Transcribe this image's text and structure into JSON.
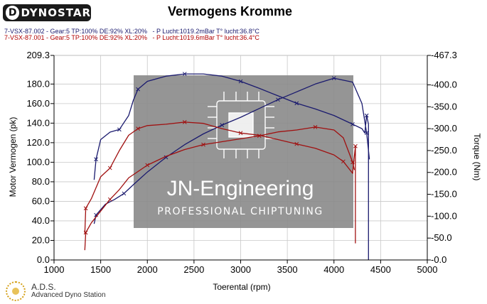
{
  "brand": {
    "logo_text": "DYNOSTAR",
    "logo_letter": "D"
  },
  "chart_title": "Vermogens Kromme",
  "runs": [
    {
      "label": "7-VSX-87.002 - Gear:5 TP:100% DE:92% XL:20%   - P Lucht:1019.2mBar T° lucht:36.8°C",
      "color": "#1a1a6e"
    },
    {
      "label": "7-VSX-87.001 - Gear:5 TP:100% DE:92% XL:20%   - P Lucht:1019.6mBar T° lucht:36.4°C",
      "color": "#b00000"
    }
  ],
  "footer": {
    "short": "A.D.S.",
    "long": "Advanced Dyno Station"
  },
  "watermark": {
    "title": "JN-Engineering",
    "subtitle": "PROFESSIONAL CHIPTUNING"
  },
  "colors": {
    "blue": "#1a1a6e",
    "red": "#a01010",
    "watermark_bg": "#8a8a8a"
  },
  "chart_data": {
    "type": "line",
    "title": "Vermogens Kromme",
    "xlabel": "Toerental (rpm)",
    "ylabel_left": "Motor Vermogen (pk)",
    "ylabel_right": "Torque (Nm)",
    "xlim": [
      1000,
      5000
    ],
    "ylim_left": [
      0,
      209.3
    ],
    "ylim_right": [
      0,
      467.3
    ],
    "x_ticks": [
      "1000",
      "1500",
      "2000",
      "2500",
      "3000",
      "3500",
      "4000",
      "4500",
      "5000"
    ],
    "y_ticks_left": [
      "0.0",
      "20.0",
      "40.0",
      "60.0",
      "80.0",
      "100.0",
      "120.0",
      "140.0",
      "160.0",
      "180.0",
      "209.3"
    ],
    "y_ticks_right": [
      "-0.0",
      "-50.0",
      "-100.0",
      "-150.0",
      "-200.0",
      "-250.0",
      "-300.0",
      "-350.0",
      "-400.0",
      "-467.3"
    ],
    "y_tick_values_left": [
      0,
      20,
      40,
      60,
      80,
      100,
      120,
      140,
      160,
      180,
      209.3
    ],
    "y_tick_values_right": [
      0,
      50,
      100,
      150,
      200,
      250,
      300,
      350,
      400,
      467.3
    ],
    "grid": true,
    "series": [
      {
        "color": "#1a1a6e",
        "axis": "left",
        "x": [
          1430,
          1450,
          1550,
          1650,
          1750,
          1850,
          2000,
          2200,
          2400,
          2600,
          2800,
          3000,
          3200,
          3400,
          3600,
          3800,
          4000,
          4200,
          4300,
          4350,
          4380
        ],
        "y": [
          37,
          46,
          57,
          62,
          68,
          77,
          90,
          105,
          118,
          129,
          138,
          146,
          155,
          164,
          172,
          180,
          186,
          182,
          160,
          130,
          103
        ]
      },
      {
        "color": "#1a1a6e",
        "axis": "right",
        "x": [
          1430,
          1450,
          1500,
          1600,
          1700,
          1800,
          1850,
          1900,
          2000,
          2200,
          2400,
          2600,
          2800,
          3000,
          3200,
          3400,
          3600,
          3800,
          4000,
          4200,
          4300,
          4330,
          4350,
          4370,
          4370
        ],
        "y": [
          183,
          230,
          275,
          292,
          298,
          330,
          365,
          390,
          408,
          420,
          425,
          425,
          420,
          408,
          392,
          375,
          358,
          345,
          330,
          310,
          300,
          290,
          330,
          310,
          0
        ]
      },
      {
        "color": "#a01010",
        "axis": "left",
        "x": [
          1330,
          1340,
          1400,
          1500,
          1600,
          1700,
          1800,
          2000,
          2200,
          2400,
          2600,
          2800,
          3000,
          3200,
          3400,
          3600,
          3800,
          4000,
          4100,
          4200,
          4220
        ],
        "y": [
          10,
          28,
          38,
          50,
          62,
          72,
          84,
          97,
          106,
          113,
          118,
          121,
          124,
          127,
          131,
          133,
          136,
          133,
          125,
          100,
          92
        ]
      },
      {
        "color": "#a01010",
        "axis": "right",
        "x": [
          1330,
          1340,
          1400,
          1500,
          1600,
          1700,
          1800,
          1900,
          2000,
          2200,
          2400,
          2600,
          2800,
          3000,
          3200,
          3400,
          3600,
          3800,
          4000,
          4100,
          4200,
          4210,
          4230,
          4230
        ],
        "y": [
          60,
          118,
          140,
          190,
          210,
          250,
          285,
          300,
          307,
          310,
          315,
          312,
          300,
          290,
          285,
          275,
          265,
          255,
          240,
          225,
          198,
          220,
          260,
          38
        ]
      }
    ]
  }
}
